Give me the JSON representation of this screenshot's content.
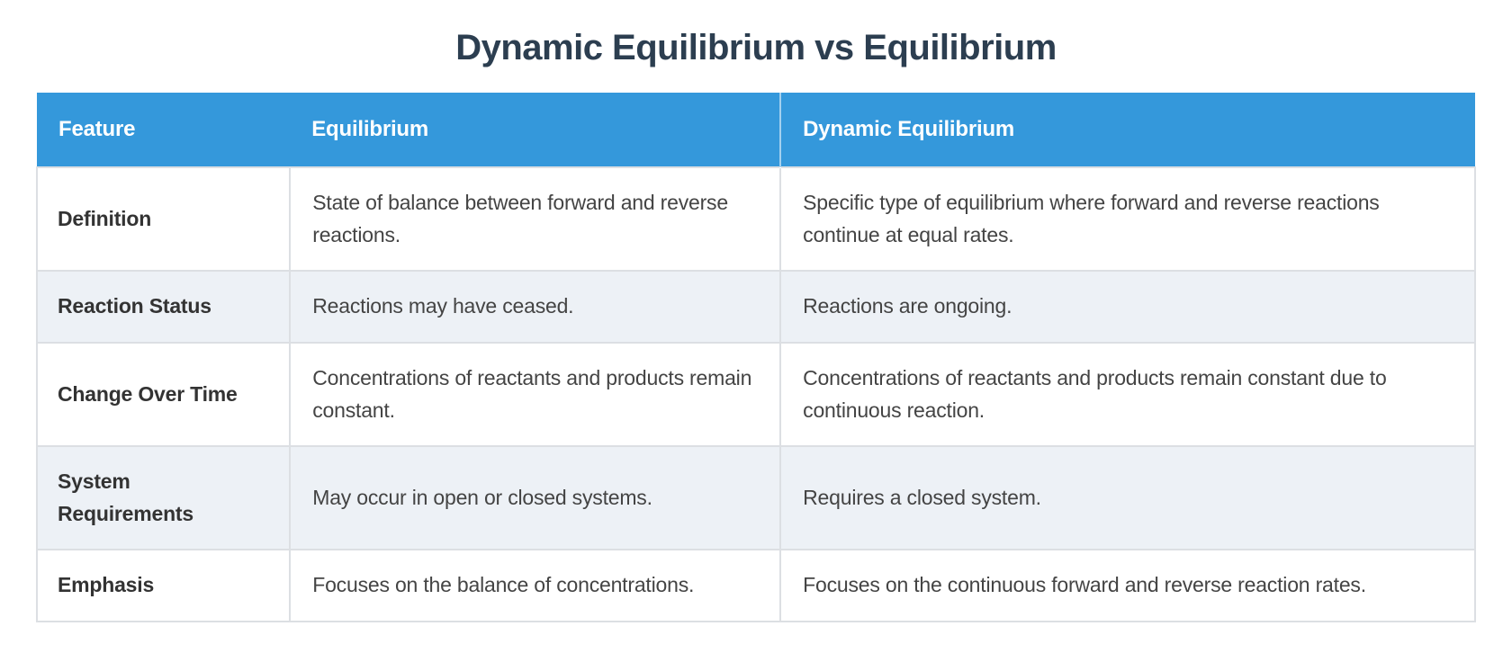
{
  "page": {
    "title": "Dynamic Equilibrium vs Equilibrium"
  },
  "colors": {
    "header_bg": "#3498db",
    "header_text": "#ffffff",
    "title_text": "#2c3e50",
    "alt_row_bg": "#edf1f6",
    "border": "#dcdfe3",
    "body_text": "#444444",
    "feature_text": "#333333"
  },
  "chart_data": {
    "type": "table",
    "title": "Dynamic Equilibrium vs Equilibrium",
    "columns": [
      "Feature",
      "Equilibrium",
      "Dynamic Equilibrium"
    ],
    "rows": [
      [
        "Definition",
        "State of balance between forward and reverse reactions.",
        "Specific type of equilibrium where forward and reverse reactions continue at equal rates."
      ],
      [
        "Reaction Status",
        "Reactions may have ceased.",
        "Reactions are ongoing."
      ],
      [
        "Change Over Time",
        "Concentrations of reactants and products remain constant.",
        "Concentrations of reactants and products remain constant due to continuous reaction."
      ],
      [
        "System Requirements",
        "May occur in open or closed systems.",
        "Requires a closed system."
      ],
      [
        "Emphasis",
        "Focuses on the balance of concentrations.",
        "Focuses on the continuous forward and reverse reaction rates."
      ]
    ],
    "layout": {
      "header_position": "top",
      "striped_rows": true,
      "grid": true
    }
  }
}
